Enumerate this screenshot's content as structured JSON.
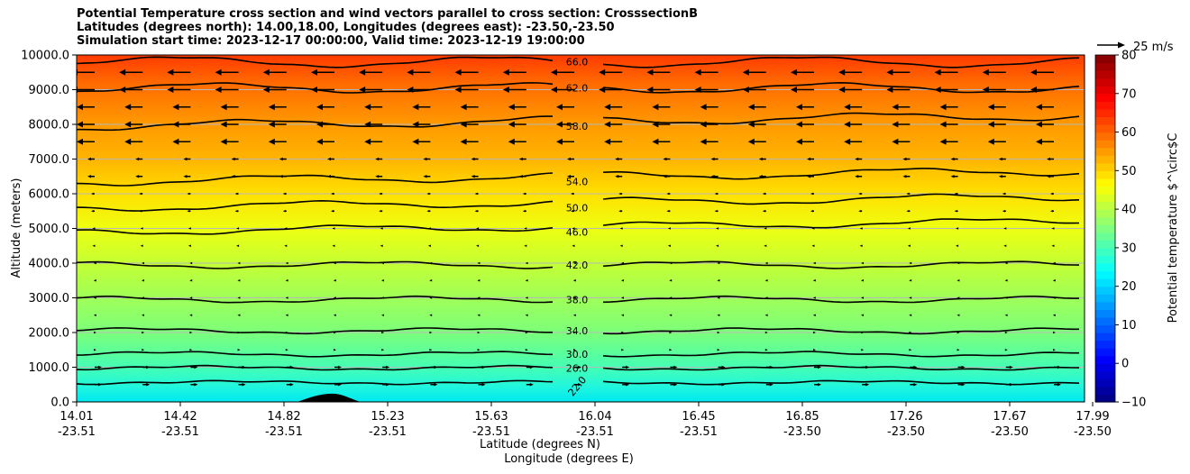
{
  "chart_data": {
    "type": "contour",
    "title_lines": [
      "Potential Temperature cross section and wind vectors parallel to cross section: CrosssectionB",
      "Latitudes (degrees north): 14.00,18.00, Longitudes (degrees east): -23.50,-23.50",
      "Simulation start time: 2023-12-17 00:00:00, Valid time: 2023-12-19 19:00:00"
    ],
    "xlabel_line1": "Latitude (degrees N)",
    "xlabel_line2": "Longitude (degrees E)",
    "ylabel": "Altitude (meters)",
    "x_ticks": [
      {
        "lat": "14.01",
        "lon": "-23.51"
      },
      {
        "lat": "14.42",
        "lon": "-23.51"
      },
      {
        "lat": "14.82",
        "lon": "-23.51"
      },
      {
        "lat": "15.23",
        "lon": "-23.51"
      },
      {
        "lat": "15.63",
        "lon": "-23.51"
      },
      {
        "lat": "16.04",
        "lon": "-23.51"
      },
      {
        "lat": "16.45",
        "lon": "-23.51"
      },
      {
        "lat": "16.85",
        "lon": "-23.50"
      },
      {
        "lat": "17.26",
        "lon": "-23.50"
      },
      {
        "lat": "17.67",
        "lon": "-23.50"
      },
      {
        "lat": "17.99",
        "lon": "-23.50"
      }
    ],
    "x_tick_fraction": [
      0,
      0.1,
      0.2,
      0.3,
      0.4,
      0.5,
      0.6,
      0.7,
      0.8,
      0.9,
      0.98
    ],
    "y_ticks": [
      "0.0",
      "1000.0",
      "2000.0",
      "3000.0",
      "4000.0",
      "5000.0",
      "6000.0",
      "7000.0",
      "8000.0",
      "9000.0",
      "10000.0"
    ],
    "ylim": [
      0,
      10000
    ],
    "colorbar": {
      "label": "Potential temperature $^\\circ$C",
      "ticks": [
        "−10",
        "0",
        "10",
        "20",
        "30",
        "40",
        "50",
        "60",
        "70",
        "80"
      ],
      "range": [
        -10,
        80
      ],
      "colormap": "jet"
    },
    "quiver_key": "25 m/s",
    "contours": [
      {
        "label": "22.0",
        "alt": 560
      },
      {
        "label": "26.0",
        "alt": 980
      },
      {
        "label": "30.0",
        "alt": 1380
      },
      {
        "label": "34.0",
        "alt": 2050
      },
      {
        "label": "38.0",
        "alt": 2950
      },
      {
        "label": "42.0",
        "alt": 3950
      },
      {
        "label": "46.0",
        "alt": 4900
      },
      {
        "label": "50.0",
        "alt": 5600
      },
      {
        "label": "54.0",
        "alt": 6350
      },
      {
        "label": "58.0",
        "alt": 7950
      },
      {
        "label": "62.0",
        "alt": 9050
      },
      {
        "label": "66.0",
        "alt": 9800
      }
    ],
    "grid": true
  }
}
